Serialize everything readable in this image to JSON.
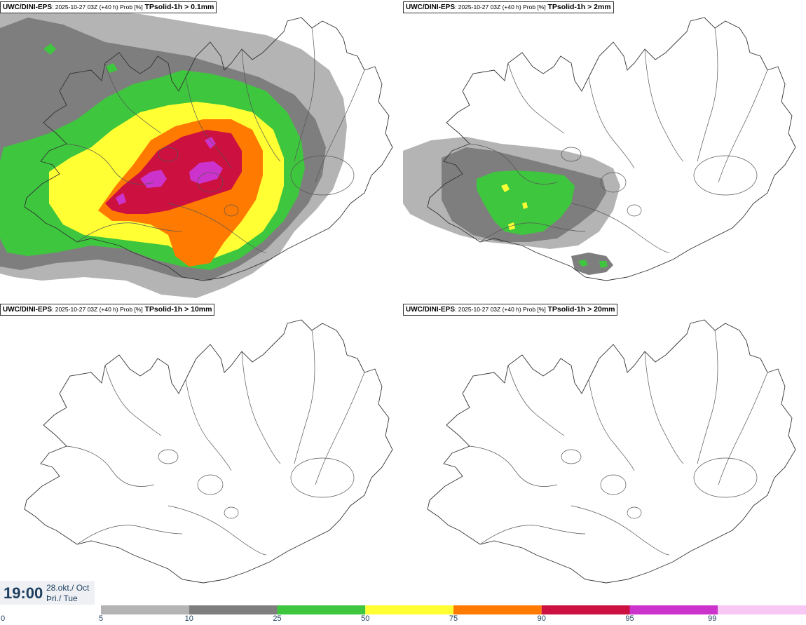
{
  "panels": [
    {
      "model": "UWC/DINI-EPS",
      "desc": ": 2025-10-27 03Z (+40 h) Prob [%]",
      "var": "TPsolid-1h > 0.1mm"
    },
    {
      "model": "UWC/DINI-EPS",
      "desc": ": 2025-10-27 03Z (+40 h) Prob [%]",
      "var": "TPsolid-1h > 2mm"
    },
    {
      "model": "UWC/DINI-EPS",
      "desc": ": 2025-10-27 03Z (+40 h) Prob [%]",
      "var": "TPsolid-1h > 10mm"
    },
    {
      "model": "UWC/DINI-EPS",
      "desc": ": 2025-10-27 03Z (+40 h) Prob [%]",
      "var": "TPsolid-1h > 20mm"
    }
  ],
  "valid": {
    "time": "19:00",
    "date_line1": "28.okt./ Oct",
    "date_line2": "Þri./ Tue"
  },
  "legend": {
    "ticks": [
      "0",
      "5",
      "10",
      "25",
      "50",
      "75",
      "90",
      "95",
      "99"
    ],
    "colors": [
      "#ffffff",
      "#b4b4b4",
      "#7e7e7e",
      "#3ec63e",
      "#ffff33",
      "#ff7a00",
      "#cc1040",
      "#cc33cc",
      "#f8c8f4"
    ]
  }
}
